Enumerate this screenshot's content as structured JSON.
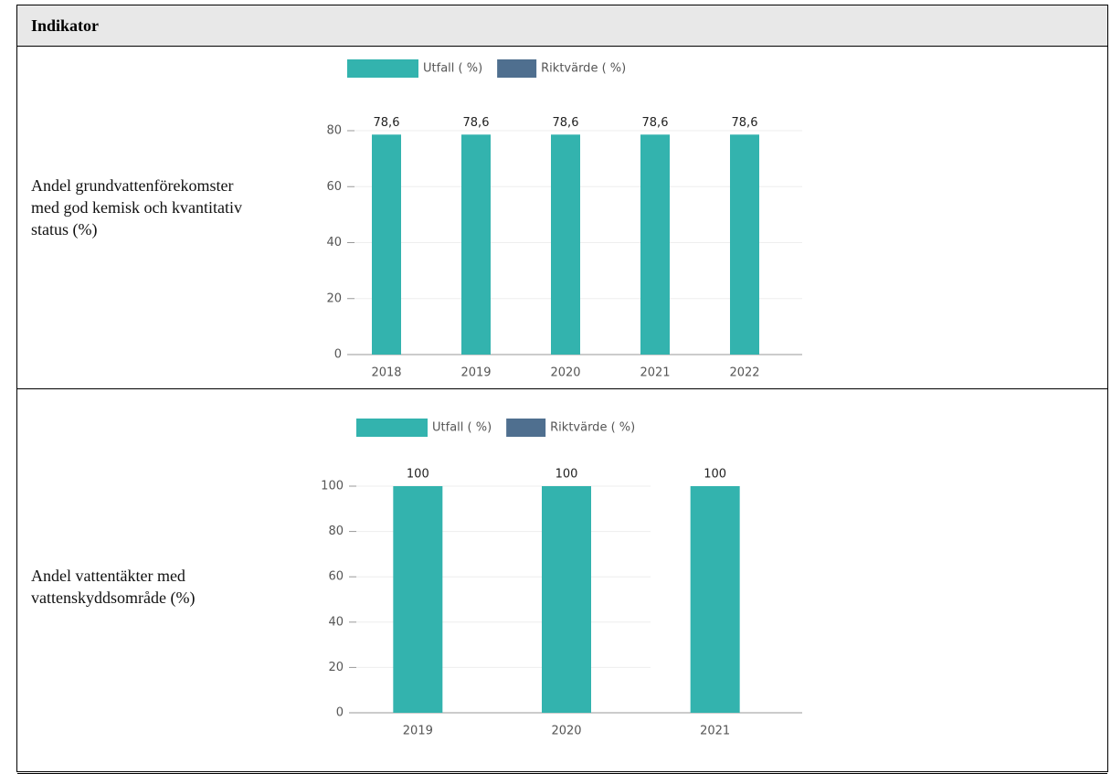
{
  "table": {
    "header": "Indikator",
    "rows": [
      "Andel grundvattenförekomster med god kemisk och kvantitativ status (%)",
      "Andel vattentäkter med vattenskyddsområde (%)"
    ]
  },
  "chart_data": [
    {
      "type": "bar",
      "categories": [
        "2018",
        "2019",
        "2020",
        "2021",
        "2022"
      ],
      "series": [
        {
          "name": "Utfall ( %)",
          "color": "#33b3ae",
          "values": [
            78.6,
            78.6,
            78.6,
            78.6,
            78.6
          ],
          "value_labels": [
            "78,6",
            "78,6",
            "78,6",
            "78,6",
            "78,6"
          ]
        },
        {
          "name": "Riktvärde ( %)",
          "color": "#4f6f8f",
          "values": [
            null,
            null,
            null,
            null,
            null
          ]
        }
      ],
      "ylim": [
        0,
        80
      ],
      "yticks": [
        0,
        20,
        40,
        60,
        80
      ],
      "grid": true
    },
    {
      "type": "bar",
      "categories": [
        "2019",
        "2020",
        "2021"
      ],
      "series": [
        {
          "name": "Utfall ( %)",
          "color": "#33b3ae",
          "values": [
            100,
            100,
            100
          ]
        },
        {
          "name": "Riktvärde ( %)",
          "color": "#4f6f8f",
          "values": [
            null,
            null,
            null
          ]
        }
      ],
      "ylim": [
        0,
        100
      ],
      "yticks": [
        0,
        20,
        40,
        60,
        80,
        100
      ],
      "grid": true
    }
  ]
}
